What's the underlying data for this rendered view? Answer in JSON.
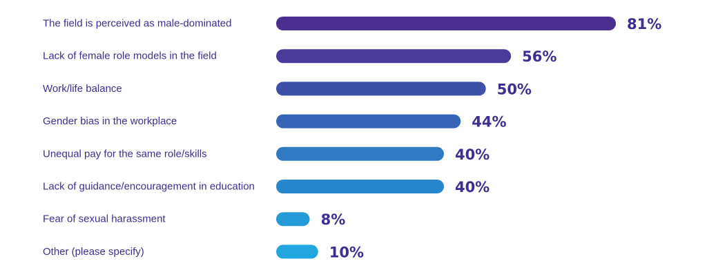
{
  "chart_data": {
    "type": "bar",
    "orientation": "horizontal",
    "title": "",
    "xlabel": "",
    "ylabel": "",
    "xlim": [
      0,
      100
    ],
    "grid": false,
    "value_suffix": "%",
    "categories": [
      "The field is perceived as male-dominated",
      "Lack of female role models in the field",
      "Work/life balance",
      "Gender bias in the workplace",
      "Unequal pay for the same role/skills",
      "Lack of guidance/encouragement in education",
      "Fear of sexual harassment",
      "Other (please specify)"
    ],
    "values": [
      81,
      56,
      50,
      44,
      40,
      40,
      8,
      10
    ],
    "value_labels": [
      "81%",
      "56%",
      "50%",
      "44%",
      "40%",
      "40%",
      "8%",
      "10%"
    ],
    "colors": [
      "#4a2f91",
      "#4b3a9a",
      "#3f50a8",
      "#3765b5",
      "#2f7ac3",
      "#2886cc",
      "#249bd6",
      "#22a6df"
    ],
    "label_color": "#3d2f8f"
  }
}
